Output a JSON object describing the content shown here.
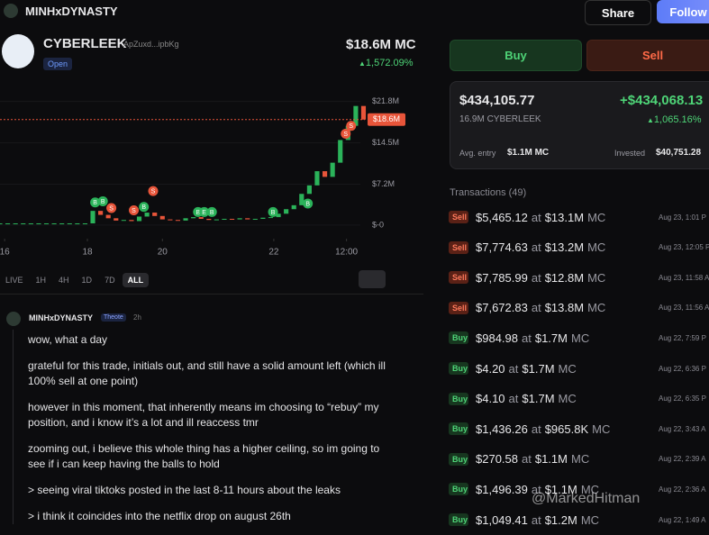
{
  "header": {
    "user": "MINHxDYNASTY",
    "share": "Share",
    "follow": "Follow"
  },
  "token": {
    "name": "CYBERLEEK",
    "address": "ApZuxd...ipbKg",
    "status": "Open",
    "market_cap": "$18.6M MC",
    "change": "1,572.09%"
  },
  "chart_data": {
    "type": "candlestick",
    "values": [
      0.3,
      0.3,
      0.3,
      0.3,
      0.3,
      0.3,
      0.3,
      0.3,
      0.3,
      0.3,
      0.3,
      0.3,
      2.5,
      1.8,
      1.2,
      0.8,
      0.9,
      0.7,
      1.5,
      2.2,
      1.6,
      1.0,
      0.9,
      0.8,
      1.2,
      1.4,
      1.1,
      0.9,
      1.0,
      1.1,
      1.0,
      1.2,
      1.0,
      1.1,
      1.3,
      1.4,
      2.0,
      2.8,
      3.5,
      5.5,
      7.0,
      9.5,
      8.5,
      11.0,
      15.0,
      17.5,
      21.0,
      18.6
    ],
    "xlim": [
      0,
      53
    ],
    "xticks": [
      {
        "value": 0.6,
        "label": "16"
      },
      {
        "value": 11.3,
        "label": "18"
      },
      {
        "value": 21,
        "label": "20"
      },
      {
        "value": 35.4,
        "label": "22"
      },
      {
        "value": 44.8,
        "label": "12:00"
      }
    ],
    "ylim": [
      -2.4,
      24.6
    ],
    "yticks": [
      {
        "value": 0,
        "label": "$-0"
      },
      {
        "value": 7.2,
        "label": "$7.2M"
      },
      {
        "value": 14.5,
        "label": "$14.5M"
      },
      {
        "value": 21.8,
        "label": "$21.8M"
      }
    ],
    "current": {
      "value": 18.6,
      "label": "$18.6M"
    },
    "markers": [
      {
        "label": "B",
        "x": 12.3,
        "y": 4
      },
      {
        "label": "B",
        "x": 13.3,
        "y": 4.2
      },
      {
        "label": "S",
        "x": 14.4,
        "y": 3
      },
      {
        "label": "S",
        "x": 17.3,
        "y": 2.6
      },
      {
        "label": "S",
        "x": 19.8,
        "y": 6
      },
      {
        "label": "B",
        "x": 18.6,
        "y": 3.2
      },
      {
        "label": "B",
        "x": 25.6,
        "y": 2.3
      },
      {
        "label": "E",
        "x": 26.4,
        "y": 2.3
      },
      {
        "label": "B",
        "x": 27.4,
        "y": 2.3
      },
      {
        "label": "B",
        "x": 35.3,
        "y": 2.3
      },
      {
        "label": "B",
        "x": 39.8,
        "y": 3.8
      },
      {
        "label": "S",
        "x": 44.7,
        "y": 16.1
      },
      {
        "label": "S",
        "x": 45.4,
        "y": 17.5
      }
    ],
    "timeframes": [
      "LIVE",
      "1H",
      "4H",
      "1D",
      "7D",
      "ALL"
    ],
    "active": "ALL"
  },
  "post": {
    "author": "MINHxDYNASTY",
    "badge": "Theote",
    "time": "2h",
    "paragraphs": [
      "wow, what a day",
      "grateful for this trade, initials out, and still have a solid amount left (which ill 100% sell at one point)",
      "however in this moment, that inherently means im choosing to “rebuy” my position, and i know it’s a lot and ill reaccess tmr",
      "zooming out, i believe this whole thing has a higher ceiling, so im going to see if i can keep having the balls to hold",
      "> seeing viral tiktoks posted in the last 8-11 hours about the leaks",
      "> i think it coincides into the netflix drop on august 26th"
    ]
  },
  "trade": {
    "buy": "Buy",
    "sell": "Sell"
  },
  "position": {
    "value": "$434,105.77",
    "pnl": "+$434,068.13",
    "amount": "16.9M CYBERLEEK",
    "pnl_pct": "1,065.16%",
    "avg_label": "Avg. entry",
    "avg": "$1.1M MC",
    "invested_label": "Invested",
    "invested": "$40,751.28"
  },
  "transactions": {
    "title": "Transactions (49)",
    "at": "at",
    "mc": "MC",
    "rows": [
      [
        "Sell",
        "$5,465.12",
        "$13.1M",
        "Aug 23, 1:01 P"
      ],
      [
        "Sell",
        "$7,774.63",
        "$13.2M",
        "Aug 23, 12:05 P"
      ],
      [
        "Sell",
        "$7,785.99",
        "$12.8M",
        "Aug 23, 11:58 A"
      ],
      [
        "Sell",
        "$7,672.83",
        "$13.8M",
        "Aug 23, 11:56 A"
      ],
      [
        "Buy",
        "$984.98",
        "$1.7M",
        "Aug 22, 7:59 P"
      ],
      [
        "Buy",
        "$4.20",
        "$1.7M",
        "Aug 22, 6:36 P"
      ],
      [
        "Buy",
        "$4.10",
        "$1.7M",
        "Aug 22, 6:35 P"
      ],
      [
        "Buy",
        "$1,436.26",
        "$965.8K",
        "Aug 22, 3:43 A"
      ],
      [
        "Buy",
        "$270.58",
        "$1.1M",
        "Aug 22, 2:39 A"
      ],
      [
        "Buy",
        "$1,496.39",
        "$1.1M",
        "Aug 22, 2:36 A"
      ],
      [
        "Buy",
        "$1,049.41",
        "$1.2M",
        "Aug 22, 1:49 A"
      ]
    ]
  },
  "watermark": "@MarkedHitman"
}
